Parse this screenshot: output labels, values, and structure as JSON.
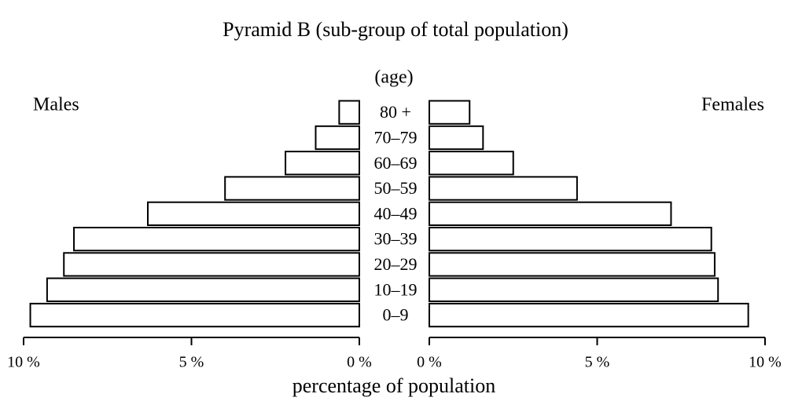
{
  "chart_data": {
    "type": "pyramid",
    "title": "Pyramid B (sub-group of total population)",
    "category_label": "(age)",
    "xlabel": "percentage of population",
    "categories": [
      "80 +",
      "70–79",
      "60–69",
      "50–59",
      "40–49",
      "30–39",
      "20–29",
      "10–19",
      "0–9"
    ],
    "series": [
      {
        "name": "Males",
        "color": "#ffffff",
        "values": [
          0.6,
          1.3,
          2.2,
          4.0,
          6.3,
          8.5,
          8.8,
          9.3,
          9.8
        ]
      },
      {
        "name": "Females",
        "color": "#ffffff",
        "values": [
          1.2,
          1.6,
          2.5,
          4.4,
          7.2,
          8.4,
          8.5,
          8.6,
          9.5
        ]
      }
    ],
    "xlim": [
      0,
      10
    ],
    "xticks": [
      {
        "value": 0,
        "label": "0 %"
      },
      {
        "value": 5,
        "label": "5 %"
      },
      {
        "value": 10,
        "label": "10 %"
      }
    ]
  }
}
